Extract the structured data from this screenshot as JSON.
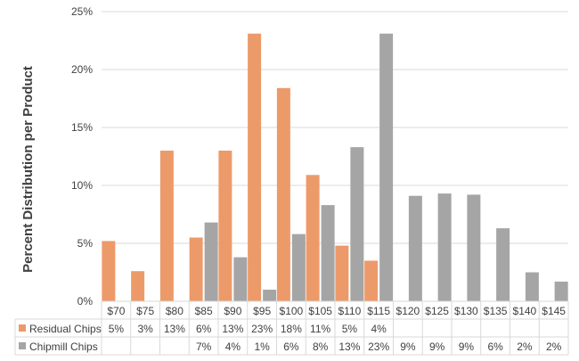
{
  "chart_data": {
    "type": "bar",
    "title": "",
    "ylabel": "Percent Distribution  per Product",
    "xlabel": "",
    "ylim": [
      0,
      25
    ],
    "yticks": [
      "0%",
      "5%",
      "10%",
      "15%",
      "20%",
      "25%"
    ],
    "ytick_values": [
      0,
      5,
      10,
      15,
      20,
      25
    ],
    "grid": "horizontal",
    "categories": [
      "$70",
      "$75",
      "$80",
      "$85",
      "$90",
      "$95",
      "$100",
      "$105",
      "$110",
      "$115",
      "$120",
      "$125",
      "$130",
      "$135",
      "$140",
      "$145"
    ],
    "series": [
      {
        "name": "Residual Chips",
        "color": "#ED9A6A",
        "values": [
          5.2,
          2.6,
          13.0,
          5.5,
          13.0,
          23.1,
          18.4,
          10.9,
          4.8,
          3.5,
          null,
          null,
          null,
          null,
          null,
          null
        ],
        "table_labels": [
          "5%",
          "3%",
          "13%",
          "6%",
          "13%",
          "23%",
          "18%",
          "11%",
          "5%",
          "4%",
          "",
          "",
          "",
          "",
          "",
          ""
        ]
      },
      {
        "name": "Chipmill Chips",
        "color": "#A5A5A5",
        "values": [
          null,
          null,
          null,
          6.8,
          3.8,
          1.0,
          5.8,
          8.3,
          13.3,
          23.1,
          9.1,
          9.3,
          9.2,
          6.3,
          2.5,
          1.7
        ],
        "table_labels": [
          "",
          "",
          "",
          "7%",
          "4%",
          "1%",
          "6%",
          "8%",
          "13%",
          "23%",
          "9%",
          "9%",
          "9%",
          "6%",
          "2%",
          "2%"
        ]
      }
    ],
    "legend": "data-table-left"
  }
}
